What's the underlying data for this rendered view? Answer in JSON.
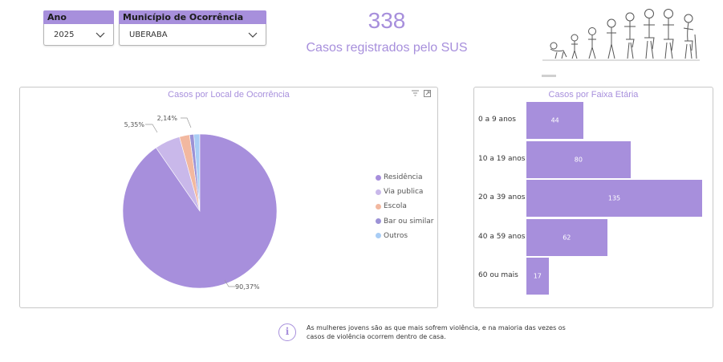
{
  "slicers": {
    "ano": {
      "label": "Ano",
      "value": "2025"
    },
    "municipio": {
      "label": "Município de Ocorrência",
      "value": "UBERABA"
    }
  },
  "kpi": {
    "value": "338",
    "label": "Casos registrados pelo SUS"
  },
  "pie_labels": {
    "large": "90,37%",
    "via": "5,35%",
    "escola": "2,14%"
  },
  "bar_labels": [
    "0 a 9 anos",
    "10 a 19 anos",
    "20 a 39 anos",
    "40 a 59 anos",
    "60 ou mais"
  ],
  "colors": {
    "accent": "#a78fdc"
  },
  "icons": {
    "filter": "filter-icon",
    "focus": "focus-mode-icon",
    "info": "info-icon",
    "chevron": "chevron-down-icon"
  },
  "info_text": {
    "line1": "As mulheres jovens são as que mais sofrem violência, e na maioria das vezes os",
    "line2": "casos de violência ocorrem dentro de casa."
  },
  "chart_data": [
    {
      "type": "pie",
      "title": "Casos por Local de Ocorrência",
      "legend_position": "right",
      "categories": [
        "Residência",
        "Via publica",
        "Escola",
        "Bar ou similar",
        "Outros"
      ],
      "values": [
        90.37,
        5.35,
        2.14,
        0.89,
        1.25
      ],
      "colors": [
        "#a78fdc",
        "#c9b8ea",
        "#f2b8a0",
        "#9c92d6",
        "#a9cdf5"
      ]
    },
    {
      "type": "bar",
      "orientation": "horizontal",
      "title": "Casos por Faixa Etária",
      "categories": [
        "0 a 9 anos",
        "10 a 19 anos",
        "20 a 39 anos",
        "40 a 59 anos",
        "60 ou mais"
      ],
      "values": [
        44,
        80,
        135,
        62,
        17
      ],
      "color": "#a78fdc"
    }
  ]
}
